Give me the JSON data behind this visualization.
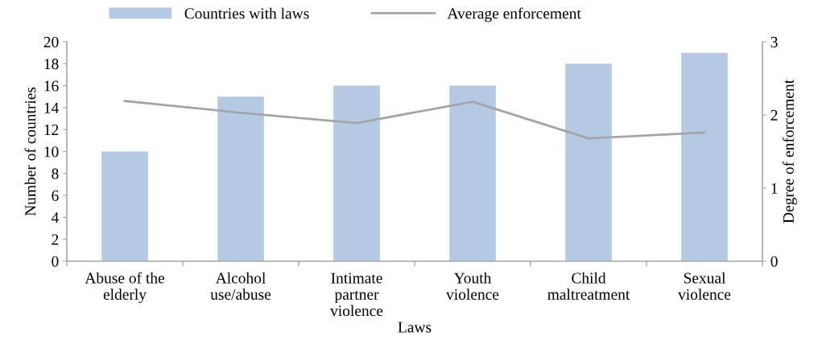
{
  "chart_data": {
    "type": "bar",
    "xlabel": "Laws",
    "ylabel": "Number of countries",
    "y2label": "Degree of enforcement",
    "categories": [
      "Abuse of the\nelderly",
      "Alcohol\nuse/abuse",
      "Intimate\npartner\nviolence",
      "Youth\nviolence",
      "Child\nmaltreatment",
      "Sexual\nviolence"
    ],
    "series": [
      {
        "name": "Countries with laws",
        "color": "#b4c9e3",
        "values": [
          10,
          15,
          16,
          16,
          18,
          19
        ]
      },
      {
        "name": "Average enforcement",
        "type": "line",
        "axis": "y2",
        "color": "#a5a5a5",
        "values": [
          2.19,
          2.03,
          1.89,
          2.18,
          1.68,
          1.76
        ]
      }
    ],
    "ylim": [
      0,
      20
    ],
    "yticks": [
      0,
      2,
      4,
      6,
      8,
      10,
      12,
      14,
      16,
      18,
      20
    ],
    "y2lim": [
      0,
      3
    ],
    "y2ticks": [
      0,
      1,
      2,
      3
    ],
    "grid": false,
    "legend": "top",
    "marker": "none",
    "line_style": "solid"
  }
}
